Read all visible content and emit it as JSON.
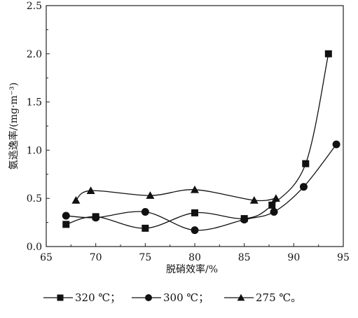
{
  "chart_data": {
    "type": "scatter",
    "title": "",
    "xlabel": "脱硝效率/%",
    "ylabel": "氨逃逸率/(mg·m⁻³)",
    "xlim": [
      65,
      95
    ],
    "ylim": [
      0.0,
      2.5
    ],
    "x_ticks": [
      "65",
      "70",
      "75",
      "80",
      "85",
      "90",
      "95"
    ],
    "y_ticks": [
      "0.0",
      "0.5",
      "1.0",
      "1.5",
      "2.0",
      "2.5"
    ],
    "grid": false,
    "legend_position": "bottom",
    "trend_curves": true,
    "series": [
      {
        "name": "320 ℃",
        "legend_label": "320 ℃；",
        "marker": "square",
        "points": [
          {
            "x": 67.0,
            "y": 0.23
          },
          {
            "x": 70.0,
            "y": 0.31
          },
          {
            "x": 75.0,
            "y": 0.19
          },
          {
            "x": 80.0,
            "y": 0.35
          },
          {
            "x": 85.0,
            "y": 0.29
          },
          {
            "x": 87.8,
            "y": 0.43
          },
          {
            "x": 91.2,
            "y": 0.86
          },
          {
            "x": 93.5,
            "y": 2.0
          }
        ]
      },
      {
        "name": "300 ℃",
        "legend_label": "300 ℃；",
        "marker": "circle",
        "points": [
          {
            "x": 67.0,
            "y": 0.32
          },
          {
            "x": 70.0,
            "y": 0.3
          },
          {
            "x": 75.0,
            "y": 0.36
          },
          {
            "x": 80.0,
            "y": 0.17
          },
          {
            "x": 85.0,
            "y": 0.28
          },
          {
            "x": 88.0,
            "y": 0.36
          },
          {
            "x": 91.0,
            "y": 0.62
          },
          {
            "x": 94.3,
            "y": 1.06
          }
        ]
      },
      {
        "name": "275 ℃",
        "legend_label": "275 ℃。",
        "marker": "triangle",
        "points": [
          {
            "x": 68.0,
            "y": 0.48
          },
          {
            "x": 69.5,
            "y": 0.58
          },
          {
            "x": 75.5,
            "y": 0.53
          },
          {
            "x": 80.0,
            "y": 0.59
          },
          {
            "x": 86.0,
            "y": 0.48
          },
          {
            "x": 88.2,
            "y": 0.5
          }
        ]
      }
    ]
  }
}
